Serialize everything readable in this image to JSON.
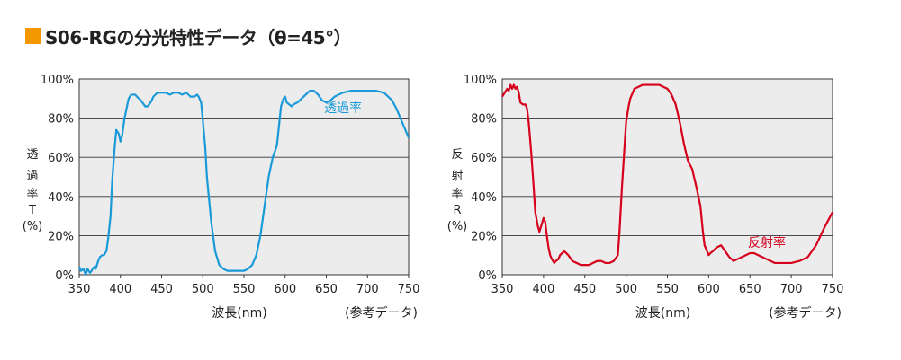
{
  "header": {
    "title": "S06-RGの分光特性データ（θ=45°）",
    "accent_color": "#f39800"
  },
  "chart_data": [
    {
      "type": "line",
      "xlabel": "波長(nm)",
      "ylabel_chars": [
        "透",
        "過",
        "率",
        "T",
        "(%)"
      ],
      "note": "(参考データ)",
      "xlim": [
        350,
        750
      ],
      "ylim": [
        0,
        100
      ],
      "xticks": [
        "350",
        "400",
        "450",
        "500",
        "550",
        "600",
        "650",
        "700",
        "750"
      ],
      "yticks": [
        "0%",
        "20%",
        "40%",
        "60%",
        "80%",
        "100%"
      ],
      "grid": true,
      "series": [
        {
          "name": "透過率",
          "color": "#1a9ad8",
          "x": [
            350,
            352,
            355,
            358,
            360,
            363,
            365,
            368,
            370,
            373,
            375,
            378,
            380,
            383,
            385,
            388,
            390,
            393,
            395,
            398,
            400,
            402,
            405,
            408,
            410,
            413,
            415,
            418,
            420,
            425,
            430,
            433,
            435,
            438,
            440,
            445,
            450,
            455,
            460,
            465,
            470,
            475,
            480,
            485,
            490,
            493,
            495,
            498,
            500,
            503,
            505,
            510,
            515,
            520,
            525,
            530,
            535,
            540,
            545,
            550,
            555,
            560,
            565,
            570,
            575,
            580,
            585,
            590,
            593,
            595,
            598,
            600,
            602,
            605,
            608,
            610,
            615,
            620,
            625,
            630,
            635,
            640,
            645,
            650,
            655,
            660,
            665,
            670,
            680,
            690,
            700,
            710,
            720,
            730,
            735,
            740,
            745,
            750
          ],
          "values": [
            4,
            2,
            3,
            0,
            3,
            1,
            2,
            4,
            3,
            7,
            9,
            10,
            10,
            12,
            18,
            30,
            48,
            65,
            74,
            72,
            68,
            71,
            80,
            86,
            90,
            92,
            92,
            92,
            91,
            89,
            86,
            86,
            87,
            89,
            91,
            93,
            93,
            93,
            92,
            93,
            93,
            92,
            93,
            91,
            91,
            92,
            91,
            88,
            79,
            65,
            50,
            28,
            12,
            5,
            3,
            2,
            2,
            2,
            2,
            2,
            3,
            5,
            10,
            20,
            35,
            50,
            60,
            66,
            78,
            86,
            90,
            91,
            88,
            87,
            86,
            87,
            88,
            90,
            92,
            94,
            94,
            92,
            89,
            88,
            89,
            91,
            92,
            93,
            94,
            94,
            94,
            94,
            93,
            89,
            85,
            80,
            75,
            70
          ]
        }
      ]
    },
    {
      "type": "line",
      "xlabel": "波長(nm)",
      "ylabel_chars": [
        "反",
        "射",
        "率",
        "R",
        "(%)"
      ],
      "note": "(参考データ)",
      "xlim": [
        350,
        750
      ],
      "ylim": [
        0,
        100
      ],
      "xticks": [
        "350",
        "400",
        "450",
        "500",
        "550",
        "600",
        "650",
        "700",
        "750"
      ],
      "yticks": [
        "0%",
        "20%",
        "40%",
        "60%",
        "80%",
        "100%"
      ],
      "grid": true,
      "series": [
        {
          "name": "反射率",
          "color": "#d6001c",
          "x": [
            350,
            353,
            356,
            358,
            360,
            362,
            364,
            366,
            368,
            370,
            372,
            375,
            378,
            380,
            382,
            385,
            388,
            390,
            393,
            395,
            398,
            400,
            402,
            404,
            406,
            408,
            410,
            413,
            415,
            418,
            420,
            425,
            430,
            435,
            440,
            445,
            450,
            455,
            460,
            465,
            470,
            475,
            480,
            485,
            490,
            492,
            495,
            498,
            500,
            503,
            505,
            510,
            515,
            520,
            525,
            530,
            535,
            540,
            545,
            550,
            555,
            560,
            565,
            570,
            575,
            580,
            585,
            590,
            593,
            595,
            598,
            600,
            602,
            605,
            610,
            615,
            620,
            625,
            630,
            635,
            640,
            645,
            650,
            655,
            660,
            665,
            670,
            675,
            680,
            690,
            700,
            710,
            720,
            730,
            740,
            750
          ],
          "values": [
            91,
            93,
            95,
            94,
            97,
            95,
            97,
            95,
            96,
            93,
            88,
            87,
            87,
            85,
            78,
            63,
            45,
            32,
            25,
            22,
            26,
            29,
            27,
            20,
            14,
            10,
            8,
            6,
            7,
            8,
            10,
            12,
            10,
            7,
            6,
            5,
            5,
            5,
            6,
            7,
            7,
            6,
            6,
            7,
            10,
            22,
            45,
            65,
            78,
            86,
            90,
            95,
            96,
            97,
            97,
            97,
            97,
            97,
            96,
            95,
            92,
            87,
            78,
            67,
            58,
            54,
            45,
            35,
            22,
            15,
            12,
            10,
            11,
            12,
            14,
            15,
            12,
            9,
            7,
            8,
            9,
            10,
            11,
            11,
            10,
            9,
            8,
            7,
            6,
            6,
            6,
            7,
            9,
            15,
            24,
            32
          ]
        }
      ]
    }
  ]
}
